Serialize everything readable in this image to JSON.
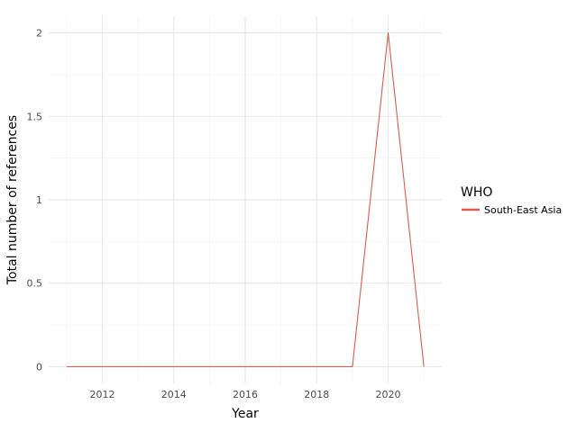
{
  "chart_data": {
    "type": "line",
    "title": "",
    "xlabel": "Year",
    "ylabel": "Total number of references",
    "x": [
      2011,
      2012,
      2013,
      2014,
      2015,
      2016,
      2017,
      2018,
      2019,
      2020,
      2021
    ],
    "series": [
      {
        "name": "South-East Asia",
        "color": "#d95f4b",
        "values": [
          0,
          0,
          0,
          0,
          0,
          0,
          0,
          0,
          0,
          2,
          0
        ]
      }
    ],
    "xticks": [
      2012,
      2014,
      2016,
      2018,
      2020
    ],
    "xtick_labels": [
      "2012",
      "2014",
      "2016",
      "2018",
      "2020"
    ],
    "yticks": [
      0,
      0.5,
      1,
      1.5,
      2
    ],
    "ytick_labels": [
      "0",
      "0.5",
      "1",
      "1.5",
      "2"
    ],
    "xlim": [
      2010.5,
      2021.5
    ],
    "ylim": [
      -0.1,
      2.1
    ],
    "grid": true,
    "legend": {
      "title": "WHO",
      "position": "right"
    }
  }
}
